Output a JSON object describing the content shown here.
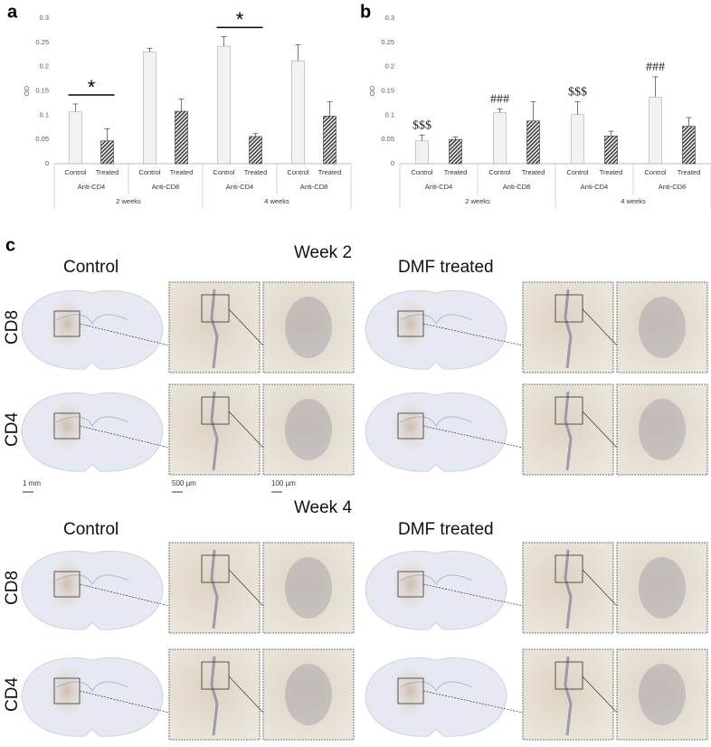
{
  "panel_labels": [
    "a",
    "b",
    "c"
  ],
  "chart_data": [
    {
      "type": "bar",
      "y_label": "OD",
      "categories": [
        "Control",
        "Treated",
        "Control",
        "Treated",
        "Control",
        "Treated",
        "Control",
        "Treated"
      ],
      "subgroups": [
        "Anti-CD4",
        "Anti-CD8",
        "Anti-CD4",
        "Anti-CD8"
      ],
      "groups": [
        "2 weeks",
        "4 weeks"
      ],
      "values": [
        0.107,
        0.047,
        0.23,
        0.108,
        0.242,
        0.056,
        0.212,
        0.098
      ],
      "errors": [
        0.016,
        0.025,
        0.008,
        0.025,
        0.02,
        0.006,
        0.033,
        0.03
      ],
      "colors": [
        "#f2f2f2",
        "#3c3c3c"
      ],
      "ylim": [
        0,
        0.3
      ],
      "yticks": [
        0,
        0.05,
        0.1,
        0.15,
        0.2,
        0.25,
        0.3
      ],
      "annotations": [
        "*",
        "*"
      ]
    },
    {
      "type": "bar",
      "y_label": "OD",
      "categories": [
        "Control",
        "Treated",
        "Control",
        "Treated",
        "Control",
        "Treated",
        "Control",
        "Treated"
      ],
      "subgroups": [
        "Anti-CD4",
        "Anti-CD8",
        "Anti-CD4",
        "Anti-CD8"
      ],
      "groups": [
        "2 weeks",
        "4 weeks"
      ],
      "values": [
        0.047,
        0.05,
        0.105,
        0.088,
        0.101,
        0.057,
        0.137,
        0.077
      ],
      "errors": [
        0.012,
        0.005,
        0.008,
        0.04,
        0.027,
        0.01,
        0.042,
        0.018
      ],
      "colors": [
        "#f2f2f2",
        "#3c3c3c"
      ],
      "ylim": [
        0,
        0.3
      ],
      "yticks": [
        0,
        0.05,
        0.1,
        0.15,
        0.2,
        0.25,
        0.3
      ],
      "annotations": [
        "$$$",
        "###",
        "$$$",
        "###"
      ]
    }
  ],
  "panel_c": {
    "weeks": [
      {
        "title": "Week 2",
        "conditions": [
          "Control",
          "DMF treated"
        ],
        "rows": [
          "CD8",
          "CD4"
        ]
      },
      {
        "title": "Week 4",
        "conditions": [
          "Control",
          "DMF treated"
        ],
        "rows": [
          "CD8",
          "CD4"
        ]
      }
    ],
    "scale_bars": [
      "1 mm",
      "500 µm",
      "100 µm"
    ]
  }
}
